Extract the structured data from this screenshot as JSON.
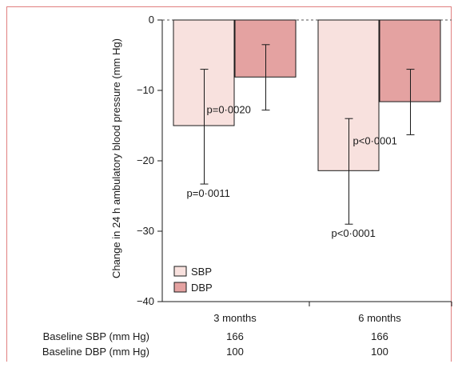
{
  "chart_data": {
    "type": "bar",
    "ylabel": "Change in 24 h ambulatory blood pressure (mm Hg)",
    "ylim": [
      -40,
      0
    ],
    "yticks": [
      0,
      -10,
      -20,
      -30,
      -40
    ],
    "categories": [
      "3 months",
      "6 months"
    ],
    "series": [
      {
        "name": "SBP",
        "color": "#f8e1de",
        "values": [
          -15.0,
          -21.4
        ],
        "error_low": [
          -23.3,
          -29.0
        ],
        "error_high": [
          -7.0,
          -14.0
        ],
        "pvalues": [
          "p=0·0011",
          "p<0·0001"
        ]
      },
      {
        "name": "DBP",
        "color": "#e4a2a1",
        "values": [
          -8.1,
          -11.6
        ],
        "error_low": [
          -12.8,
          -16.3
        ],
        "error_high": [
          -3.5,
          -7.0
        ],
        "pvalues": [
          "p=0·0020",
          "p<0·0001"
        ]
      }
    ],
    "baseline_rows": [
      {
        "label": "Baseline SBP (mm Hg)",
        "values": [
          "166",
          "166"
        ]
      },
      {
        "label": "Baseline DBP (mm Hg)",
        "values": [
          "100",
          "100"
        ]
      }
    ],
    "legend_position": "bottom-left"
  }
}
